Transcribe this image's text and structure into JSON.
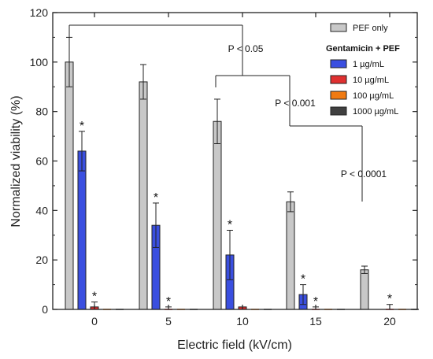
{
  "chart_data": {
    "type": "bar",
    "xlabel": "Electric field (kV/cm)",
    "ylabel": "Normalized viability (%)",
    "ylim": [
      0,
      120
    ],
    "yticks": [
      0,
      20,
      40,
      60,
      80,
      100,
      120
    ],
    "categories": [
      "0",
      "5",
      "10",
      "15",
      "20"
    ],
    "legend_header": "Gentamicin + PEF",
    "series": [
      {
        "name": "PEF only",
        "color": "#c8c8c8",
        "values": [
          100,
          92,
          76,
          43.5,
          16
        ],
        "errors": [
          10,
          7,
          9,
          4,
          1.5
        ]
      },
      {
        "name": "1 µg/mL",
        "color": "#3a4fe0",
        "values": [
          64,
          34,
          22,
          6,
          null
        ],
        "errors": [
          8,
          9,
          10,
          4,
          null
        ],
        "sig": [
          true,
          true,
          true,
          true,
          false
        ]
      },
      {
        "name": "10 µg/mL",
        "color": "#e03030",
        "values": [
          1,
          0,
          1,
          0,
          0
        ],
        "errors": [
          2,
          1,
          0,
          1,
          2
        ],
        "sig": [
          true,
          true,
          false,
          true,
          true
        ]
      },
      {
        "name": "100 µg/mL",
        "color": "#f07a12",
        "values": [
          0,
          0,
          0,
          0,
          0
        ],
        "errors": [
          0,
          0,
          0,
          0,
          0
        ]
      },
      {
        "name": "1000 µg/mL",
        "color": "#404040",
        "values": [
          0,
          0,
          0,
          0,
          0
        ],
        "errors": [
          0,
          0,
          0,
          0,
          0
        ]
      }
    ],
    "significance_marker": "*",
    "comparisons": [
      {
        "label": "P < 0.05",
        "groups": [
          "0",
          "5",
          "10"
        ]
      },
      {
        "label": "P < 0.001",
        "groups": [
          "10",
          "15"
        ]
      },
      {
        "label": "P < 0.0001",
        "groups": [
          "15",
          "20"
        ]
      }
    ],
    "legend_position": "top-right",
    "grid": false
  }
}
